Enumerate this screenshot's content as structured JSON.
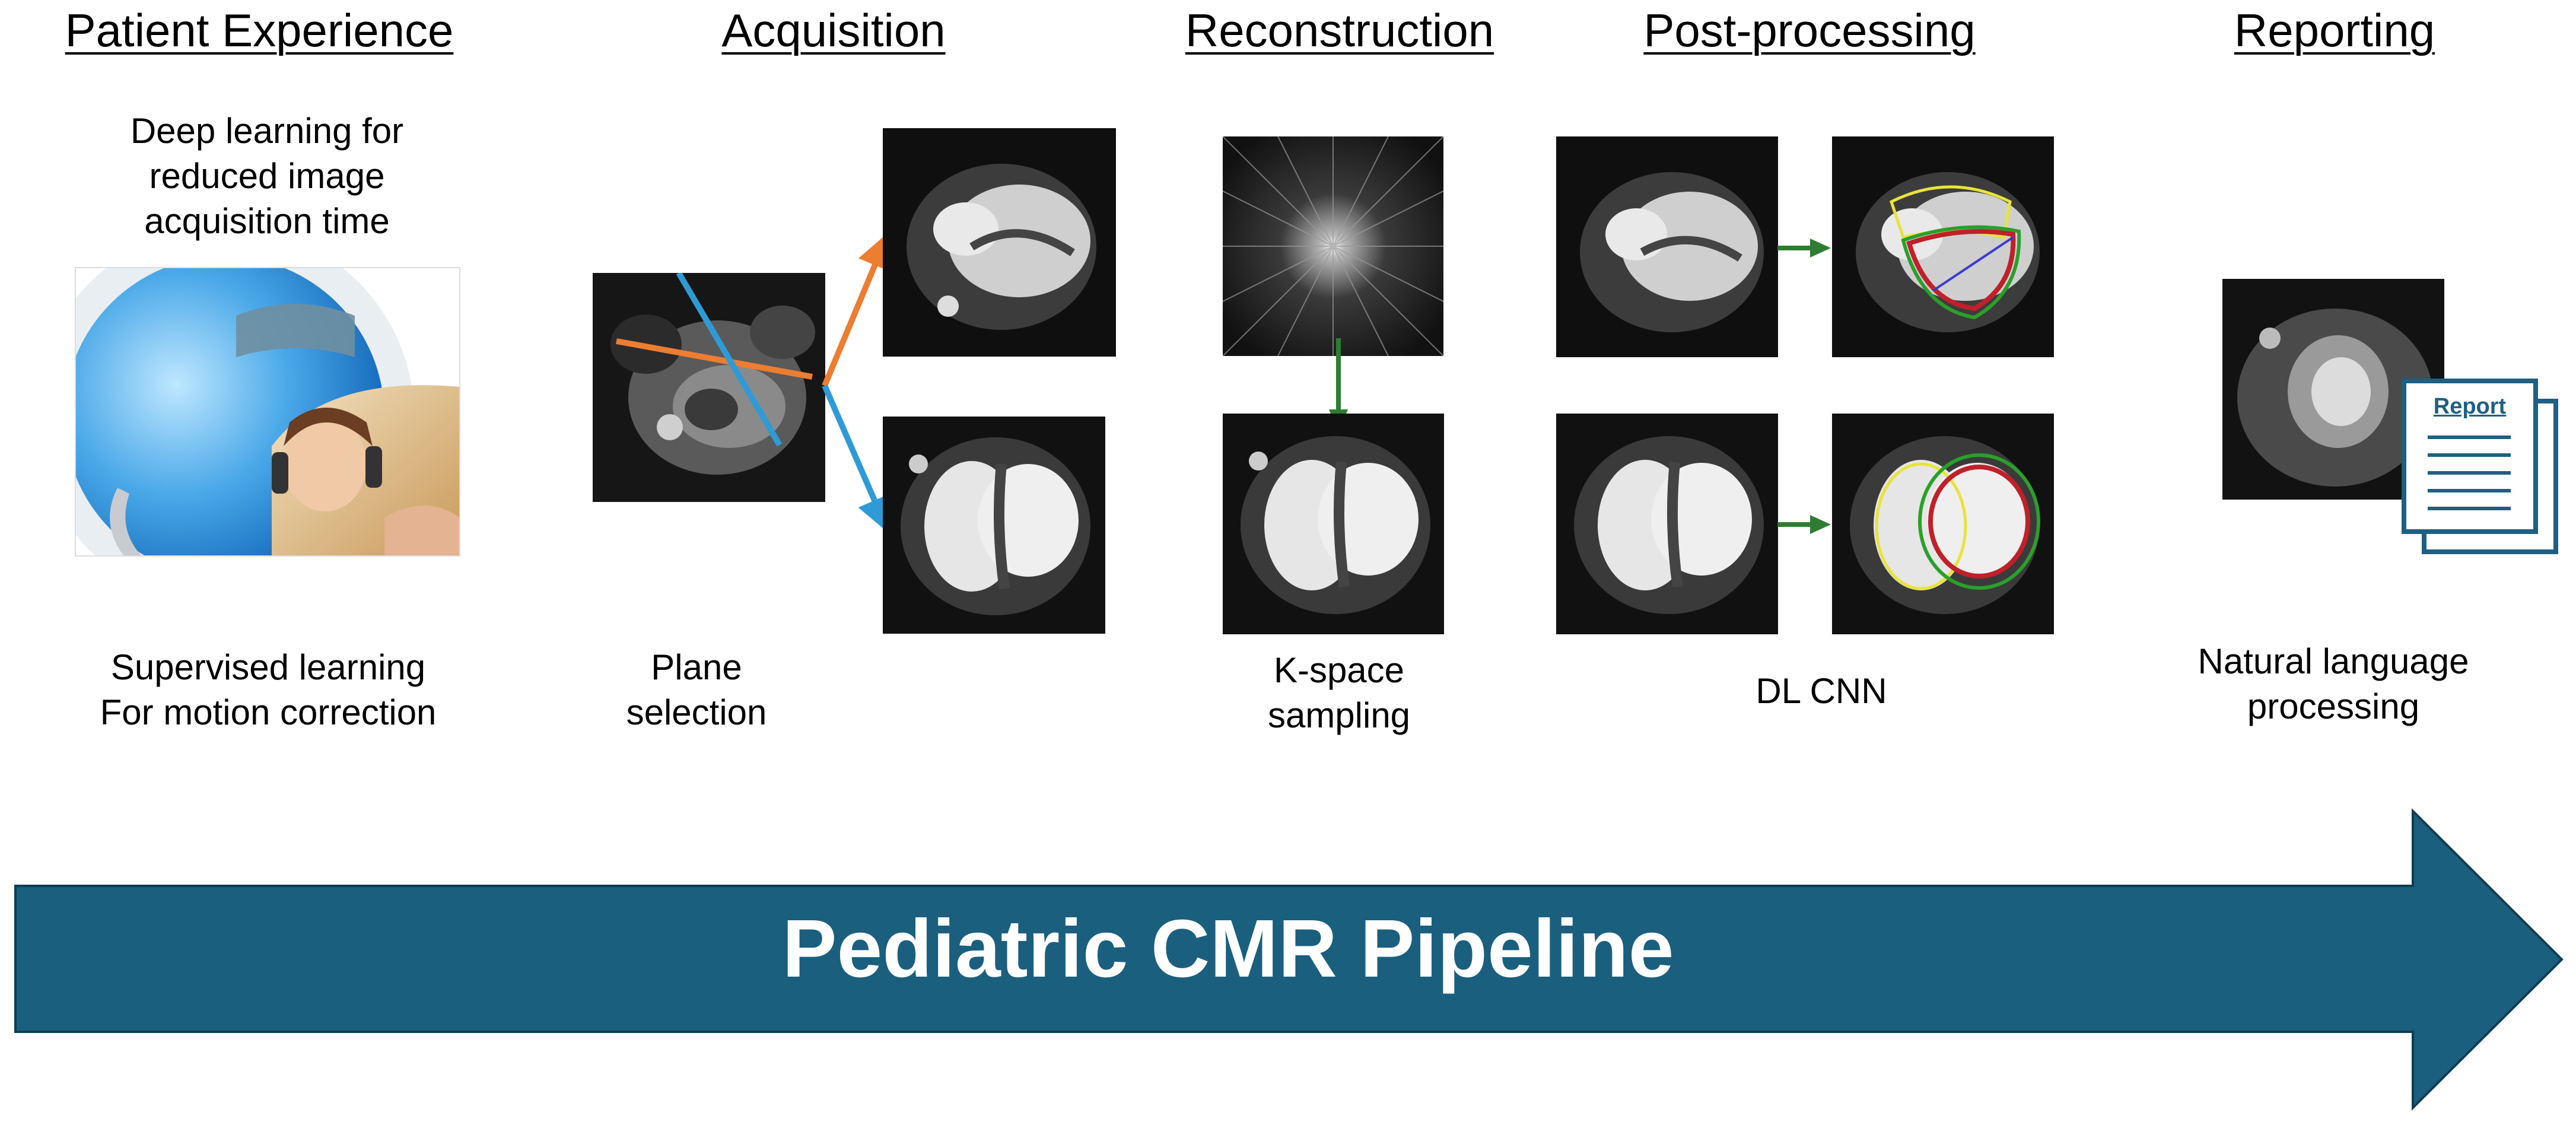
{
  "stages": {
    "patient": {
      "heading": "Patient  Experience",
      "caption_top": [
        "Deep learning for",
        "reduced image",
        "acquisition time"
      ],
      "caption_bottom": [
        "Supervised learning",
        "For motion correction"
      ]
    },
    "acquisition": {
      "heading": "Acquisition",
      "caption": [
        "Plane",
        "selection"
      ]
    },
    "reconstruction": {
      "heading": "Reconstruction",
      "caption": [
        "K-space",
        "sampling"
      ]
    },
    "postprocessing": {
      "heading": "Post-processing",
      "caption": "DL CNN"
    },
    "reporting": {
      "heading": "Reporting",
      "report_label": "Report",
      "caption": [
        "Natural language",
        "processing"
      ]
    }
  },
  "banner": {
    "title": "Pediatric CMR Pipeline",
    "color": "#1a5f7e"
  },
  "colors": {
    "plane_orange": "#ed7d31",
    "plane_blue": "#2e9bd6",
    "arrow_green": "#2e7d32",
    "contour_yellow": "#e8e33a",
    "contour_red": "#c0202a",
    "contour_green": "#2aa02a",
    "report_blue": "#1f5f82"
  },
  "icons": [
    "mri-scanner-photo",
    "cardiac-mri-image",
    "k-space-image",
    "report-document-icon"
  ]
}
